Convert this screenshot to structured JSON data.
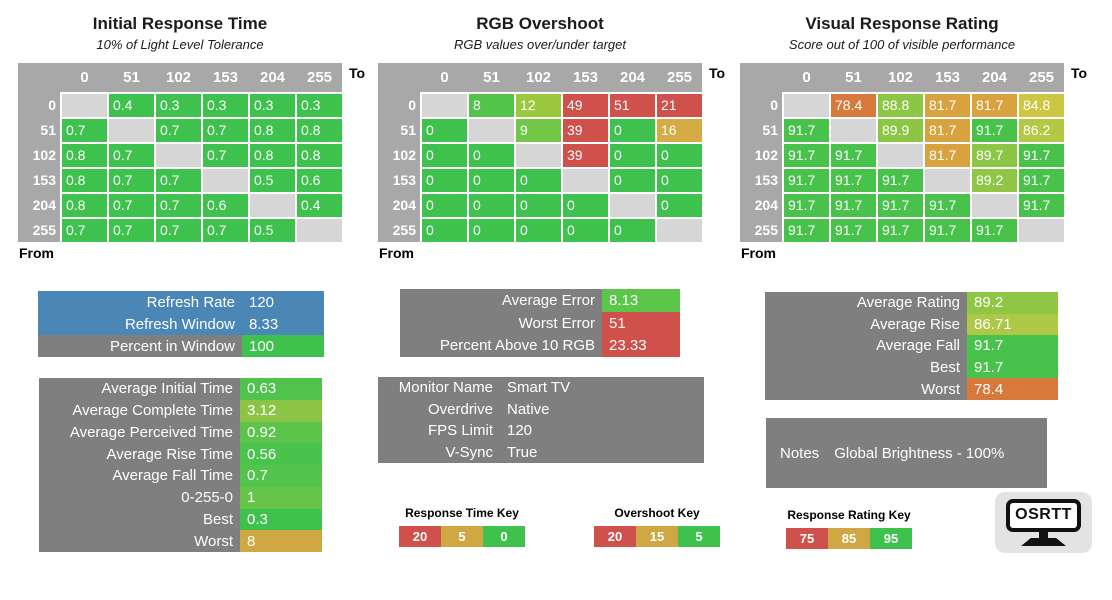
{
  "colors": {
    "green": "#3ec24d",
    "red": "#d0504c",
    "gold": "#d0a843",
    "blue": "#4a86b6",
    "gray": "#7f7f7f",
    "header_gray": "#a8a8a8",
    "diagonal_gray": "#d6d6d6"
  },
  "chart_data": [
    {
      "type": "heatmap",
      "title": "Initial Response Time",
      "subtitle": "10% of Light Level Tolerance",
      "x_label": "To",
      "y_label": "From",
      "levels": [
        "0",
        "51",
        "102",
        "153",
        "204",
        "255"
      ],
      "rows": [
        {
          "from": "0",
          "cells": [
            null,
            {
              "v": "0.4",
              "c": "#3ec24d"
            },
            {
              "v": "0.3",
              "c": "#3ec24d"
            },
            {
              "v": "0.3",
              "c": "#3ec24d"
            },
            {
              "v": "0.3",
              "c": "#3ec24d"
            },
            {
              "v": "0.3",
              "c": "#3ec24d"
            }
          ]
        },
        {
          "from": "51",
          "cells": [
            {
              "v": "0.7",
              "c": "#3ec24d"
            },
            null,
            {
              "v": "0.7",
              "c": "#3ec24d"
            },
            {
              "v": "0.7",
              "c": "#3ec24d"
            },
            {
              "v": "0.8",
              "c": "#3ec24d"
            },
            {
              "v": "0.8",
              "c": "#3ec24d"
            }
          ]
        },
        {
          "from": "102",
          "cells": [
            {
              "v": "0.8",
              "c": "#3ec24d"
            },
            {
              "v": "0.7",
              "c": "#3ec24d"
            },
            null,
            {
              "v": "0.7",
              "c": "#3ec24d"
            },
            {
              "v": "0.8",
              "c": "#3ec24d"
            },
            {
              "v": "0.8",
              "c": "#3ec24d"
            }
          ]
        },
        {
          "from": "153",
          "cells": [
            {
              "v": "0.8",
              "c": "#3ec24d"
            },
            {
              "v": "0.7",
              "c": "#3ec24d"
            },
            {
              "v": "0.7",
              "c": "#3ec24d"
            },
            null,
            {
              "v": "0.5",
              "c": "#3ec24d"
            },
            {
              "v": "0.6",
              "c": "#3ec24d"
            }
          ]
        },
        {
          "from": "204",
          "cells": [
            {
              "v": "0.8",
              "c": "#3ec24d"
            },
            {
              "v": "0.7",
              "c": "#3ec24d"
            },
            {
              "v": "0.7",
              "c": "#3ec24d"
            },
            {
              "v": "0.6",
              "c": "#3ec24d"
            },
            null,
            {
              "v": "0.4",
              "c": "#3ec24d"
            }
          ]
        },
        {
          "from": "255",
          "cells": [
            {
              "v": "0.7",
              "c": "#3ec24d"
            },
            {
              "v": "0.7",
              "c": "#3ec24d"
            },
            {
              "v": "0.7",
              "c": "#3ec24d"
            },
            {
              "v": "0.7",
              "c": "#3ec24d"
            },
            {
              "v": "0.5",
              "c": "#3ec24d"
            },
            null
          ]
        }
      ]
    },
    {
      "type": "heatmap",
      "title": "RGB Overshoot",
      "subtitle": "RGB values over/under target",
      "x_label": "To",
      "y_label": "From",
      "levels": [
        "0",
        "51",
        "102",
        "153",
        "204",
        "255"
      ],
      "rows": [
        {
          "from": "0",
          "cells": [
            null,
            {
              "v": "8",
              "c": "#53c44a"
            },
            {
              "v": "12",
              "c": "#9cc83f"
            },
            {
              "v": "49",
              "c": "#d0504c"
            },
            {
              "v": "51",
              "c": "#d0504c"
            },
            {
              "v": "21",
              "c": "#d0504c"
            }
          ]
        },
        {
          "from": "51",
          "cells": [
            {
              "v": "0",
              "c": "#3ec24d"
            },
            null,
            {
              "v": "9",
              "c": "#72c748"
            },
            {
              "v": "39",
              "c": "#d0504c"
            },
            {
              "v": "0",
              "c": "#3ec24d"
            },
            {
              "v": "16",
              "c": "#d4ab45"
            }
          ]
        },
        {
          "from": "102",
          "cells": [
            {
              "v": "0",
              "c": "#3ec24d"
            },
            {
              "v": "0",
              "c": "#3ec24d"
            },
            null,
            {
              "v": "39",
              "c": "#d0504c"
            },
            {
              "v": "0",
              "c": "#3ec24d"
            },
            {
              "v": "0",
              "c": "#3ec24d"
            }
          ]
        },
        {
          "from": "153",
          "cells": [
            {
              "v": "0",
              "c": "#3ec24d"
            },
            {
              "v": "0",
              "c": "#3ec24d"
            },
            {
              "v": "0",
              "c": "#3ec24d"
            },
            null,
            {
              "v": "0",
              "c": "#3ec24d"
            },
            {
              "v": "0",
              "c": "#3ec24d"
            }
          ]
        },
        {
          "from": "204",
          "cells": [
            {
              "v": "0",
              "c": "#3ec24d"
            },
            {
              "v": "0",
              "c": "#3ec24d"
            },
            {
              "v": "0",
              "c": "#3ec24d"
            },
            {
              "v": "0",
              "c": "#3ec24d"
            },
            null,
            {
              "v": "0",
              "c": "#3ec24d"
            }
          ]
        },
        {
          "from": "255",
          "cells": [
            {
              "v": "0",
              "c": "#3ec24d"
            },
            {
              "v": "0",
              "c": "#3ec24d"
            },
            {
              "v": "0",
              "c": "#3ec24d"
            },
            {
              "v": "0",
              "c": "#3ec24d"
            },
            {
              "v": "0",
              "c": "#3ec24d"
            },
            null
          ]
        }
      ]
    },
    {
      "type": "heatmap",
      "title": "Visual Response Rating",
      "subtitle": "Score out of 100 of visible performance",
      "x_label": "To",
      "y_label": "From",
      "levels": [
        "0",
        "51",
        "102",
        "153",
        "204",
        "255"
      ],
      "rows": [
        {
          "from": "0",
          "cells": [
            null,
            {
              "v": "78.4",
              "c": "#d8793c"
            },
            {
              "v": "88.8",
              "c": "#8bc644"
            },
            {
              "v": "81.7",
              "c": "#d8a33f"
            },
            {
              "v": "81.7",
              "c": "#d8a33f"
            },
            {
              "v": "84.8",
              "c": "#cdc643"
            }
          ]
        },
        {
          "from": "51",
          "cells": [
            {
              "v": "91.7",
              "c": "#49c24b"
            },
            null,
            {
              "v": "89.9",
              "c": "#8bc644"
            },
            {
              "v": "81.7",
              "c": "#d8a33f"
            },
            {
              "v": "91.7",
              "c": "#49c24b"
            },
            {
              "v": "86.2",
              "c": "#b4c846"
            }
          ]
        },
        {
          "from": "102",
          "cells": [
            {
              "v": "91.7",
              "c": "#49c24b"
            },
            {
              "v": "91.7",
              "c": "#49c24b"
            },
            null,
            {
              "v": "81.7",
              "c": "#d8a33f"
            },
            {
              "v": "89.7",
              "c": "#8bc644"
            },
            {
              "v": "91.7",
              "c": "#49c24b"
            }
          ]
        },
        {
          "from": "153",
          "cells": [
            {
              "v": "91.7",
              "c": "#49c24b"
            },
            {
              "v": "91.7",
              "c": "#49c24b"
            },
            {
              "v": "91.7",
              "c": "#49c24b"
            },
            null,
            {
              "v": "89.2",
              "c": "#8fc645"
            },
            {
              "v": "91.7",
              "c": "#49c24b"
            }
          ]
        },
        {
          "from": "204",
          "cells": [
            {
              "v": "91.7",
              "c": "#49c24b"
            },
            {
              "v": "91.7",
              "c": "#49c24b"
            },
            {
              "v": "91.7",
              "c": "#49c24b"
            },
            {
              "v": "91.7",
              "c": "#49c24b"
            },
            null,
            {
              "v": "91.7",
              "c": "#49c24b"
            }
          ]
        },
        {
          "from": "255",
          "cells": [
            {
              "v": "91.7",
              "c": "#49c24b"
            },
            {
              "v": "91.7",
              "c": "#49c24b"
            },
            {
              "v": "91.7",
              "c": "#49c24b"
            },
            {
              "v": "91.7",
              "c": "#49c24b"
            },
            {
              "v": "91.7",
              "c": "#49c24b"
            },
            null
          ]
        }
      ]
    }
  ],
  "panels": [
    {
      "id": "refresh-stats",
      "rows": [
        {
          "label": "Refresh Rate",
          "value": "120",
          "label_bg": "blue",
          "value_bg": "blue"
        },
        {
          "label": "Refresh Window",
          "value": "8.33",
          "label_bg": "blue",
          "value_bg": "blue"
        },
        {
          "label": "Percent in Window",
          "value": "100",
          "label_bg": "gray",
          "value_bg": "#3ec24d"
        }
      ]
    },
    {
      "id": "response-time-stats",
      "rows": [
        {
          "label": "Average Initial Time",
          "value": "0.63",
          "label_bg": "gray",
          "value_bg": "#4fc34b"
        },
        {
          "label": "Average Complete Time",
          "value": "3.12",
          "label_bg": "gray",
          "value_bg": "#8cc545"
        },
        {
          "label": "Average Perceived Time",
          "value": "0.92",
          "label_bg": "gray",
          "value_bg": "#5cc44b"
        },
        {
          "label": "Average Rise Time",
          "value": "0.56",
          "label_bg": "gray",
          "value_bg": "#4ac34c"
        },
        {
          "label": "Average Fall Time",
          "value": "0.7",
          "label_bg": "gray",
          "value_bg": "#52c34b"
        },
        {
          "label": "0-255-0",
          "value": "1",
          "label_bg": "gray",
          "value_bg": "#66c549"
        },
        {
          "label": "Best",
          "value": "0.3",
          "label_bg": "gray",
          "value_bg": "#3ec24d"
        },
        {
          "label": "Worst",
          "value": "8",
          "label_bg": "gray",
          "value_bg": "#d0a843"
        }
      ]
    },
    {
      "id": "overshoot-stats",
      "rows": [
        {
          "label": "Average Error",
          "value": "8.13",
          "label_bg": "gray",
          "value_bg": "#5bc64a"
        },
        {
          "label": "Worst Error",
          "value": "51",
          "label_bg": "gray",
          "value_bg": "#d0504c"
        },
        {
          "label": "Percent Above 10 RGB",
          "value": "23.33",
          "label_bg": "gray",
          "value_bg": "#d0504c"
        }
      ]
    },
    {
      "id": "monitor-info",
      "rows": [
        {
          "label": "Monitor Name",
          "value": "Smart TV",
          "label_bg": "gray",
          "value_bg": "gray"
        },
        {
          "label": "Overdrive",
          "value": "Native",
          "label_bg": "gray",
          "value_bg": "gray"
        },
        {
          "label": "FPS Limit",
          "value": "120",
          "label_bg": "gray",
          "value_bg": "gray"
        },
        {
          "label": "V-Sync",
          "value": "True",
          "label_bg": "gray",
          "value_bg": "gray"
        }
      ]
    },
    {
      "id": "rating-stats",
      "rows": [
        {
          "label": "Average Rating",
          "value": "89.2",
          "label_bg": "gray",
          "value_bg": "#8fc645"
        },
        {
          "label": "Average Rise",
          "value": "86.71",
          "label_bg": "gray",
          "value_bg": "#adc746"
        },
        {
          "label": "Average Fall",
          "value": "91.7",
          "label_bg": "gray",
          "value_bg": "#49c24b"
        },
        {
          "label": "Best",
          "value": "91.7",
          "label_bg": "gray",
          "value_bg": "#49c24b"
        },
        {
          "label": "Worst",
          "value": "78.4",
          "label_bg": "gray",
          "value_bg": "#d8793c"
        }
      ]
    }
  ],
  "notes": {
    "label": "Notes",
    "text": "Global Brightness - 100%"
  },
  "keys": [
    {
      "title": "Response Time Key",
      "segments": [
        {
          "v": "20",
          "c": "#d0504c"
        },
        {
          "v": "5",
          "c": "#d0a843"
        },
        {
          "v": "0",
          "c": "#3ec24d"
        }
      ]
    },
    {
      "title": "Overshoot Key",
      "segments": [
        {
          "v": "20",
          "c": "#d0504c"
        },
        {
          "v": "15",
          "c": "#d0a843"
        },
        {
          "v": "5",
          "c": "#3ec24d"
        }
      ]
    },
    {
      "title": "Response Rating Key",
      "segments": [
        {
          "v": "75",
          "c": "#d0504c"
        },
        {
          "v": "85",
          "c": "#d0a843"
        },
        {
          "v": "95",
          "c": "#3ec24d"
        }
      ]
    }
  ],
  "logo": {
    "text": "OSRTT"
  }
}
